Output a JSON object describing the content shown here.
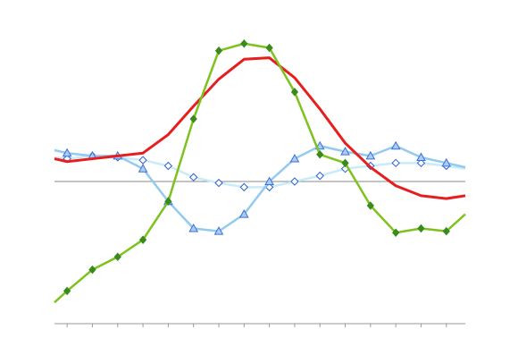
{
  "chart_data": {
    "type": "line",
    "x": [
      0.5,
      1,
      2,
      3,
      4,
      5,
      6,
      7,
      8,
      9,
      10,
      11,
      12,
      13,
      14,
      15,
      16,
      16.75
    ],
    "xlim": [
      0.5,
      16.75
    ],
    "ylim": [
      -1,
      1
    ],
    "zero_line": true,
    "series": [
      {
        "color": "#c8ecf8",
        "marker": "open-diamond",
        "marker_color": "#2f5fd0",
        "values": [
          0.17,
          0.16,
          0.18,
          0.17,
          0.15,
          0.11,
          0.03,
          -0.01,
          -0.04,
          -0.04,
          0,
          0.04,
          0.09,
          0.11,
          0.13,
          0.13,
          0.11,
          0.09
        ]
      },
      {
        "color": "#93caf0",
        "marker": "triangle",
        "marker_color": "#3b6fd9",
        "values": [
          0.22,
          0.2,
          0.18,
          0.18,
          0.09,
          -0.14,
          -0.33,
          -0.35,
          -0.23,
          0,
          0.16,
          0.25,
          0.21,
          0.18,
          0.25,
          0.17,
          0.13,
          0.1
        ]
      },
      {
        "color": "#e61e1e",
        "marker": "none",
        "values": [
          0.16,
          0.14,
          0.16,
          0.18,
          0.2,
          0.33,
          0.53,
          0.72,
          0.86,
          0.87,
          0.73,
          0.51,
          0.27,
          0.1,
          -0.03,
          -0.1,
          -0.12,
          -0.1
        ]
      },
      {
        "color": "#7ec21e",
        "marker": "diamond",
        "marker_color": "#3a8a1e",
        "values": [
          -0.85,
          -0.77,
          -0.62,
          -0.53,
          -0.41,
          -0.14,
          0.44,
          0.92,
          0.97,
          0.94,
          0.63,
          0.19,
          0.13,
          -0.17,
          -0.36,
          -0.33,
          -0.35,
          -0.23
        ]
      }
    ]
  }
}
